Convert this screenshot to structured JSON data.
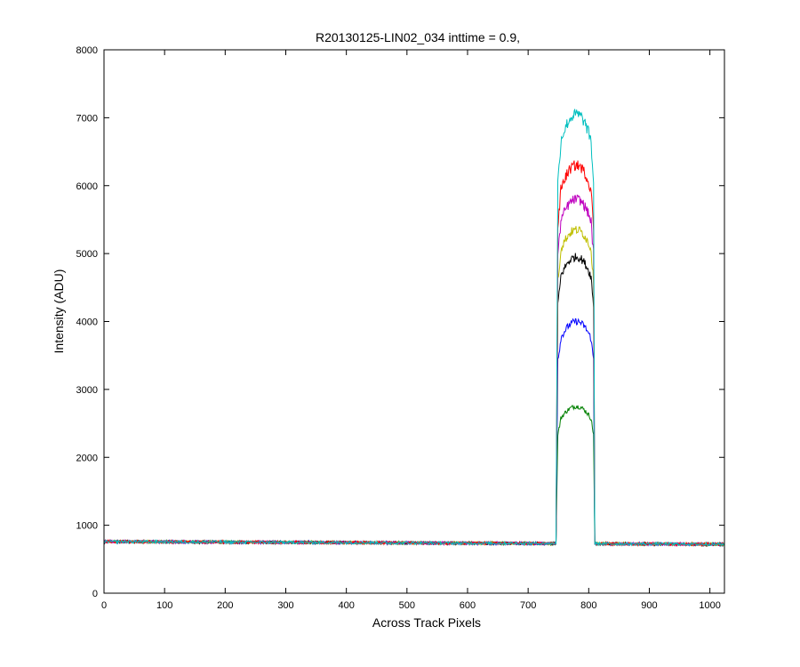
{
  "chart_data": {
    "type": "line",
    "title": "R20130125-LIN02_034 inttime = 0.9,",
    "xlabel": "Across Track Pixels",
    "ylabel": "Intensity (ADU)",
    "xlim": [
      0,
      1024
    ],
    "ylim": [
      0,
      8000
    ],
    "x_ticks": [
      0,
      100,
      200,
      300,
      400,
      500,
      600,
      700,
      800,
      900,
      1000
    ],
    "y_ticks": [
      0,
      1000,
      2000,
      3000,
      4000,
      5000,
      6000,
      7000,
      8000
    ],
    "grid": false,
    "legend": "none",
    "baseline": {
      "x": [
        0,
        1024
      ],
      "y": [
        760,
        720
      ]
    },
    "plateau": {
      "x_start": 746,
      "x_end": 810,
      "x_peak": 780
    },
    "series": [
      {
        "color": "#008000",
        "edge_level": 2350,
        "shoulder_level": 2500,
        "peak": 2750
      },
      {
        "color": "#0000ff",
        "edge_level": 3450,
        "shoulder_level": 3650,
        "peak": 4000
      },
      {
        "color": "#000000",
        "edge_level": 4250,
        "shoulder_level": 4550,
        "peak": 4950
      },
      {
        "color": "#bfbf00",
        "edge_level": 4600,
        "shoulder_level": 4950,
        "peak": 5350
      },
      {
        "color": "#bf00bf",
        "edge_level": 5000,
        "shoulder_level": 5350,
        "peak": 5800
      },
      {
        "color": "#ff0000",
        "edge_level": 5400,
        "shoulder_level": 5800,
        "peak": 6300
      },
      {
        "color": "#00bfbf",
        "edge_level": 6050,
        "shoulder_level": 6500,
        "peak": 7050
      }
    ]
  }
}
